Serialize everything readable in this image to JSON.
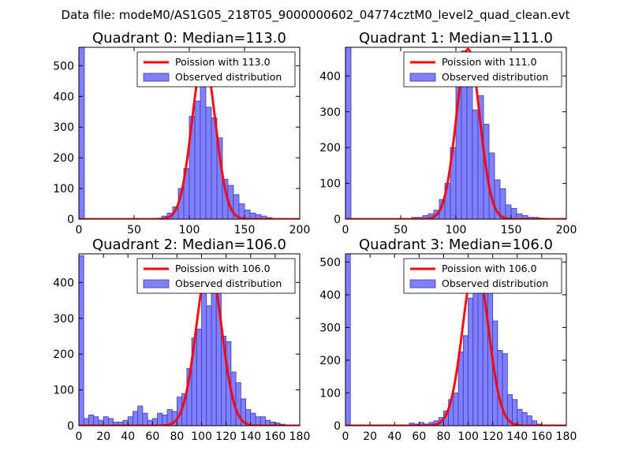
{
  "figure": {
    "suptitle": "Data file: modeM0/AS1G05_218T05_9000000602_04774cztM0_level2_quad_clean.evt"
  },
  "colors": {
    "hist_fill": "#8080ff",
    "hist_edge": "#3a3ab0",
    "poisson": "#ff0000",
    "poisson_light": "#ff8080"
  },
  "chart_data": [
    {
      "type": "bar",
      "title": "Quadrant 0: Median=113.0",
      "xlim": [
        0,
        200
      ],
      "ylim": [
        0,
        560
      ],
      "xticks": [
        0,
        50,
        100,
        150,
        200
      ],
      "yticks": [
        0,
        100,
        200,
        300,
        400,
        500
      ],
      "bin_width": 5,
      "legend": {
        "position": "top-right",
        "entries": [
          "Poission with 113.0",
          "Observed distribution"
        ]
      },
      "poisson": {
        "label": "Poission with 113.0",
        "mean": 113.0,
        "peak": 525
      },
      "histogram": {
        "label": "Observed distribution",
        "x": [
          0,
          75,
          80,
          85,
          90,
          95,
          100,
          105,
          110,
          115,
          120,
          125,
          130,
          135,
          140,
          145,
          150,
          155,
          160,
          165,
          170,
          175
        ],
        "values": [
          560,
          10,
          20,
          40,
          100,
          165,
          335,
          385,
          520,
          365,
          330,
          265,
          130,
          110,
          80,
          50,
          30,
          20,
          15,
          10,
          5,
          2
        ]
      }
    },
    {
      "type": "bar",
      "title": "Quadrant 1: Median=111.0",
      "xlim": [
        0,
        200
      ],
      "ylim": [
        0,
        480
      ],
      "xticks": [
        0,
        50,
        100,
        150,
        200
      ],
      "yticks": [
        0,
        100,
        200,
        300,
        400
      ],
      "bin_width": 5,
      "legend": {
        "position": "top-right",
        "entries": [
          "Poission with 111.0",
          "Observed distribution"
        ]
      },
      "poisson": {
        "label": "Poission with 111.0",
        "mean": 111.0,
        "peak": 475
      },
      "histogram": {
        "label": "Observed distribution",
        "x": [
          0,
          60,
          65,
          70,
          75,
          80,
          85,
          90,
          95,
          100,
          105,
          110,
          115,
          120,
          125,
          130,
          135,
          140,
          145,
          150,
          155,
          160,
          165,
          170,
          175,
          180
        ],
        "values": [
          480,
          5,
          5,
          10,
          15,
          25,
          55,
          100,
          200,
          395,
          470,
          440,
          305,
          345,
          265,
          185,
          110,
          85,
          40,
          30,
          15,
          10,
          5,
          5,
          3,
          2
        ]
      }
    },
    {
      "type": "bar",
      "title": "Quadrant 2: Median=106.0",
      "xlim": [
        0,
        180
      ],
      "ylim": [
        0,
        480
      ],
      "xticks": [
        0,
        20,
        40,
        60,
        80,
        100,
        120,
        140,
        160,
        180
      ],
      "yticks": [
        0,
        100,
        200,
        300,
        400
      ],
      "bin_width": 4,
      "legend": {
        "position": "top-right",
        "entries": [
          "Poission with 106.0",
          "Observed distribution"
        ]
      },
      "poisson": {
        "label": "Poission with 106.0",
        "mean": 106.0,
        "peak": 455
      },
      "histogram": {
        "label": "Observed distribution",
        "x": [
          0,
          4,
          8,
          12,
          16,
          20,
          24,
          28,
          32,
          36,
          40,
          44,
          48,
          52,
          56,
          60,
          64,
          68,
          72,
          76,
          80,
          84,
          88,
          92,
          96,
          100,
          104,
          108,
          112,
          116,
          120,
          124,
          128,
          132,
          136,
          140,
          144,
          148,
          152,
          156,
          160,
          164,
          168
        ],
        "values": [
          475,
          20,
          30,
          25,
          15,
          25,
          20,
          10,
          10,
          15,
          25,
          40,
          55,
          35,
          15,
          20,
          35,
          30,
          45,
          40,
          80,
          90,
          160,
          245,
          270,
          400,
          335,
          380,
          440,
          250,
          235,
          150,
          120,
          75,
          45,
          35,
          25,
          25,
          15,
          10,
          8,
          4,
          2
        ]
      }
    },
    {
      "type": "bar",
      "title": "Quadrant 3: Median=106.0",
      "xlim": [
        0,
        180
      ],
      "ylim": [
        0,
        525
      ],
      "xticks": [
        0,
        20,
        40,
        60,
        80,
        100,
        120,
        140,
        160,
        180
      ],
      "yticks": [
        0,
        100,
        200,
        300,
        400,
        500
      ],
      "bin_width": 4,
      "legend": {
        "position": "top-right",
        "entries": [
          "Poission with 106.0",
          "Observed distribution"
        ]
      },
      "poisson": {
        "label": "Poission with 106.0",
        "mean": 106.0,
        "peak": 505
      },
      "histogram": {
        "label": "Observed distribution",
        "x": [
          0,
          52,
          56,
          60,
          64,
          68,
          72,
          76,
          80,
          84,
          88,
          92,
          96,
          100,
          104,
          108,
          112,
          116,
          120,
          124,
          128,
          132,
          136,
          140,
          144,
          148,
          152,
          156,
          160
        ],
        "values": [
          525,
          8,
          5,
          10,
          5,
          10,
          15,
          25,
          45,
          80,
          100,
          225,
          275,
          390,
          440,
          500,
          495,
          430,
          320,
          230,
          220,
          95,
          80,
          50,
          40,
          30,
          15,
          5,
          2
        ]
      }
    }
  ]
}
